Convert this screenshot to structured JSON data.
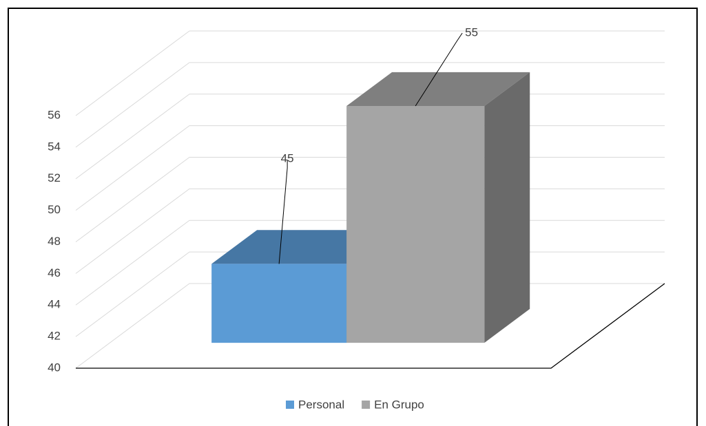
{
  "chart_data": {
    "type": "bar3d",
    "series": [
      {
        "name": "Personal",
        "color": "#5B9BD5",
        "values": [
          45
        ]
      },
      {
        "name": "En Grupo",
        "color": "#A5A5A5",
        "values": [
          55
        ]
      }
    ],
    "ylim": [
      40,
      56
    ],
    "yticks": [
      40,
      42,
      44,
      46,
      48,
      50,
      52,
      54,
      56
    ],
    "grid": true,
    "legend": "bottom"
  }
}
